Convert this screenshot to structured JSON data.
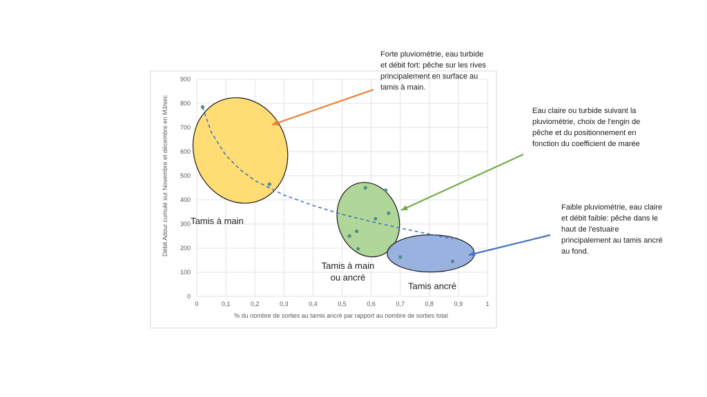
{
  "chart_data": {
    "type": "scatter",
    "title": "",
    "xlabel": "% du nombre de sorties  au tamis ancré par rapport  au nombre de sorties total",
    "ylabel": "Débit Adour cumulé sur Novembre et décembre en M3/sec",
    "xlim": [
      0,
      1
    ],
    "ylim": [
      0,
      900
    ],
    "x_ticks": [
      "0",
      "0,1",
      "0,2",
      "0,3",
      "0,4",
      "0,5",
      "0,6",
      "0,7",
      "0,8",
      "0,9",
      "1"
    ],
    "y_ticks": [
      "0",
      "100",
      "200",
      "300",
      "400",
      "500",
      "600",
      "700",
      "800",
      "900"
    ],
    "grid": true,
    "legend": "none",
    "points": [
      {
        "x": 0.02,
        "y": 785
      },
      {
        "x": 0.25,
        "y": 465
      },
      {
        "x": 0.58,
        "y": 450
      },
      {
        "x": 0.65,
        "y": 440
      },
      {
        "x": 0.66,
        "y": 345
      },
      {
        "x": 0.615,
        "y": 322
      },
      {
        "x": 0.55,
        "y": 270
      },
      {
        "x": 0.525,
        "y": 250
      },
      {
        "x": 0.555,
        "y": 197
      },
      {
        "x": 0.7,
        "y": 163
      },
      {
        "x": 0.88,
        "y": 145
      }
    ],
    "trend": [
      {
        "x": 0.02,
        "y": 785
      },
      {
        "x": 0.05,
        "y": 680
      },
      {
        "x": 0.1,
        "y": 585
      },
      {
        "x": 0.15,
        "y": 525
      },
      {
        "x": 0.2,
        "y": 480
      },
      {
        "x": 0.3,
        "y": 420
      },
      {
        "x": 0.4,
        "y": 377
      },
      {
        "x": 0.5,
        "y": 340
      },
      {
        "x": 0.6,
        "y": 310
      },
      {
        "x": 0.7,
        "y": 283
      },
      {
        "x": 0.8,
        "y": 258
      },
      {
        "x": 0.88,
        "y": 238
      }
    ],
    "groups": [
      {
        "label": "Tamis à main",
        "label2": "",
        "color": "#FFD966",
        "cx": 0.15,
        "cy": 605,
        "rx": 0.16,
        "ry": 222,
        "angle": 20,
        "label_x": 0.07,
        "label_y": 300
      },
      {
        "label": "Tamis à main",
        "label2": "ou ancré",
        "color": "#A9D18E",
        "cx": 0.59,
        "cy": 318,
        "rx": 0.105,
        "ry": 157,
        "angle": 18,
        "label_x": 0.52,
        "label_y": 115
      },
      {
        "label": "Tamis ancré",
        "label2": "",
        "color": "#8FAADC",
        "cx": 0.805,
        "cy": 178,
        "rx": 0.15,
        "ry": 77,
        "angle": 0,
        "label_x": 0.81,
        "label_y": 30
      }
    ],
    "point_color": "#4E8C8C",
    "trend_color": "#4472C4"
  },
  "annotations": [
    {
      "text": "Forte pluviométrie,  eau turbide\net débit fort: pêche sur les rives\nprincipalement en surface au\ntamis à main.",
      "color": "#ED7D31"
    },
    {
      "text": "Eau claire ou turbide suivant la\npluviométrie,  choix de l'engin de\npêche et du positionnement  en\nfonction du coefficient de marée",
      "color": "#70AD47"
    },
    {
      "text": "Faible pluviométrie,  eau claire\net débit faible: pêche dans le\nhaut de l'estuaire\nprincipalement au tamis ancré\nau fond.",
      "color": "#4472C4"
    }
  ]
}
